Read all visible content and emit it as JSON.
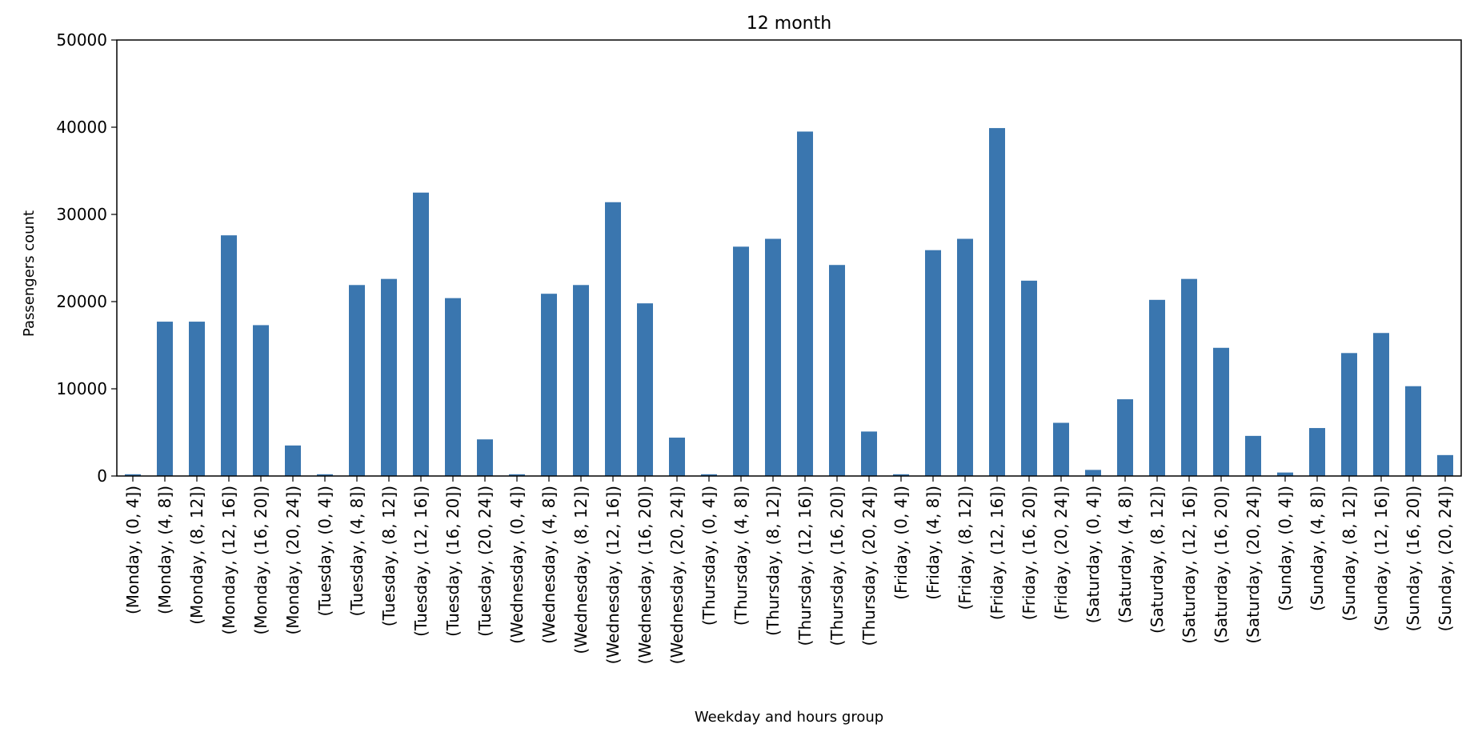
{
  "chart_data": {
    "type": "bar",
    "title": "12 month",
    "xlabel": "Weekday and hours group",
    "ylabel": "Passengers count",
    "ylim": [
      0,
      50000
    ],
    "yticks": [
      0,
      10000,
      20000,
      30000,
      40000,
      50000
    ],
    "grid": false,
    "legend": "none",
    "bar_color": "#3a76af",
    "categories": [
      "(Monday, (0, 4])",
      "(Monday, (4, 8])",
      "(Monday, (8, 12])",
      "(Monday, (12, 16])",
      "(Monday, (16, 20])",
      "(Monday, (20, 24])",
      "(Tuesday, (0, 4])",
      "(Tuesday, (4, 8])",
      "(Tuesday, (8, 12])",
      "(Tuesday, (12, 16])",
      "(Tuesday, (16, 20])",
      "(Tuesday, (20, 24])",
      "(Wednesday, (0, 4])",
      "(Wednesday, (4, 8])",
      "(Wednesday, (8, 12])",
      "(Wednesday, (12, 16])",
      "(Wednesday, (16, 20])",
      "(Wednesday, (20, 24])",
      "(Thursday, (0, 4])",
      "(Thursday, (4, 8])",
      "(Thursday, (8, 12])",
      "(Thursday, (12, 16])",
      "(Thursday, (16, 20])",
      "(Thursday, (20, 24])",
      "(Friday, (0, 4])",
      "(Friday, (4, 8])",
      "(Friday, (8, 12])",
      "(Friday, (12, 16])",
      "(Friday, (16, 20])",
      "(Friday, (20, 24])",
      "(Saturday, (0, 4])",
      "(Saturday, (4, 8])",
      "(Saturday, (8, 12])",
      "(Saturday, (12, 16])",
      "(Saturday, (16, 20])",
      "(Saturday, (20, 24])",
      "(Sunday, (0, 4])",
      "(Sunday, (4, 8])",
      "(Sunday, (8, 12])",
      "(Sunday, (12, 16])",
      "(Sunday, (16, 20])",
      "(Sunday, (20, 24])"
    ],
    "values": [
      200,
      17700,
      17700,
      27600,
      17300,
      3500,
      200,
      21900,
      22600,
      32500,
      20400,
      4200,
      200,
      20900,
      21900,
      31400,
      19800,
      4400,
      200,
      26300,
      27200,
      39500,
      24200,
      5100,
      200,
      25900,
      27200,
      39900,
      22400,
      6100,
      700,
      8800,
      20200,
      22600,
      14700,
      4600,
      400,
      5500,
      14100,
      16400,
      10300,
      2400
    ]
  }
}
